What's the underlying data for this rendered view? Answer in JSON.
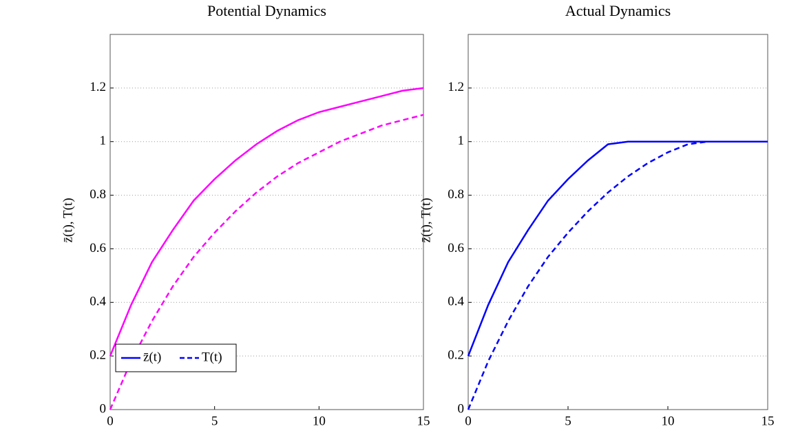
{
  "chart_data": [
    {
      "type": "line",
      "title": "Potential Dynamics",
      "y_label": "z̄(t), T(t)",
      "x": [
        0,
        1,
        2,
        3,
        4,
        5,
        6,
        7,
        8,
        9,
        10,
        11,
        12,
        13,
        14,
        15
      ],
      "series": [
        {
          "name": "z̄(t)",
          "color": "#ff00ff",
          "dash": false,
          "values": [
            0.2,
            0.39,
            0.55,
            0.67,
            0.78,
            0.86,
            0.93,
            0.99,
            1.04,
            1.08,
            1.11,
            1.13,
            1.15,
            1.17,
            1.19,
            1.2
          ]
        },
        {
          "name": "T(t)",
          "color": "#ff00ff",
          "dash": true,
          "values": [
            0,
            0.18,
            0.33,
            0.46,
            0.57,
            0.66,
            0.74,
            0.81,
            0.87,
            0.92,
            0.96,
            1.0,
            1.03,
            1.06,
            1.08,
            1.1
          ]
        }
      ],
      "xlim": [
        0,
        15
      ],
      "xticks": [
        0,
        5,
        10,
        15
      ],
      "ylim": [
        0,
        1.4
      ],
      "yticks": [
        0,
        0.2,
        0.4,
        0.6,
        0.8,
        1,
        1.2
      ],
      "grid": true,
      "legend": {
        "entries": [
          "z̄(t)",
          "T(t)"
        ],
        "color": "#0000ff",
        "position": "lower left"
      }
    },
    {
      "type": "line",
      "title": "Actual Dynamics",
      "y_label": "z̄(t), T(t)",
      "x": [
        0,
        1,
        2,
        3,
        4,
        5,
        6,
        7,
        8,
        9,
        10,
        11,
        12,
        13,
        14,
        15
      ],
      "series": [
        {
          "name": "z̄(t)",
          "color": "#0000ff",
          "dash": false,
          "values": [
            0.2,
            0.39,
            0.55,
            0.67,
            0.78,
            0.86,
            0.93,
            0.99,
            1,
            1,
            1,
            1,
            1,
            1,
            1,
            1
          ]
        },
        {
          "name": "T(t)",
          "color": "#0000ff",
          "dash": true,
          "values": [
            0,
            0.18,
            0.33,
            0.46,
            0.57,
            0.66,
            0.74,
            0.81,
            0.87,
            0.92,
            0.96,
            0.99,
            1,
            1,
            1,
            1
          ]
        }
      ],
      "xlim": [
        0,
        15
      ],
      "xticks": [
        0,
        5,
        10,
        15
      ],
      "ylim": [
        0,
        1.4
      ],
      "yticks": [
        0,
        0.2,
        0.4,
        0.6,
        0.8,
        1,
        1.2
      ],
      "grid": true
    }
  ]
}
